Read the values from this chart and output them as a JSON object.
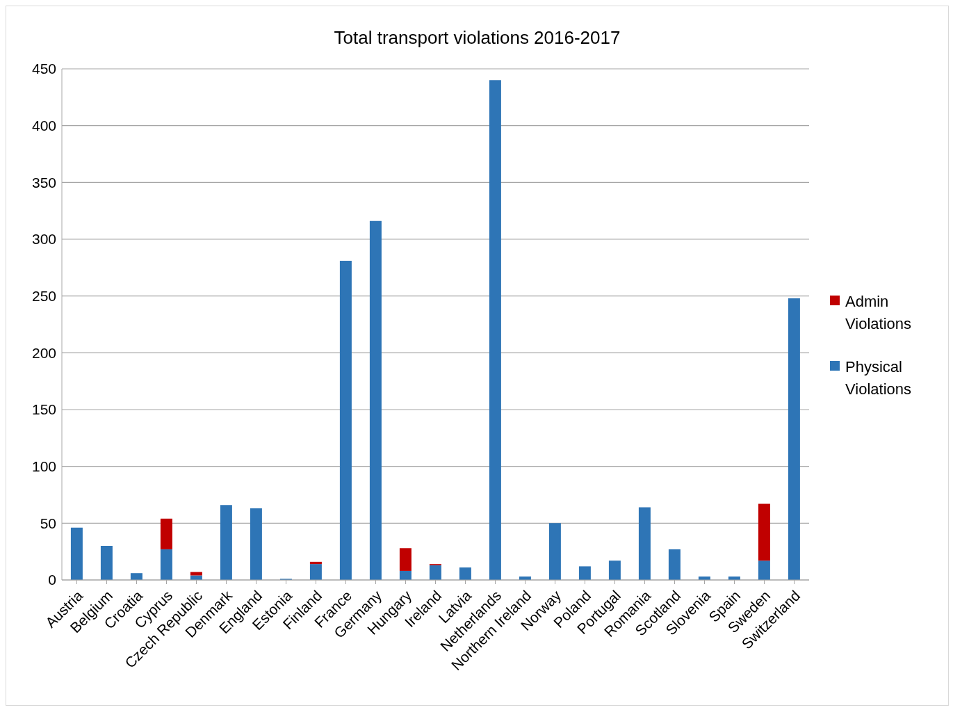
{
  "chart_data": {
    "type": "bar",
    "title": "Total transport violations 2016-2017",
    "stacked": true,
    "categories": [
      "Austria",
      "Belgium",
      "Croatia",
      "Cyprus",
      "Czech Republic",
      "Denmark",
      "England",
      "Estonia",
      "Finland",
      "France",
      "Germany",
      "Hungary",
      "Ireland",
      "Latvia",
      "Netherlands",
      "Northern Ireland",
      "Norway",
      "Poland",
      "Portugal",
      "Romania",
      "Scotland",
      "Slovenia",
      "Spain",
      "Sweden",
      "Switzerland"
    ],
    "series": [
      {
        "name": "Physical Violations",
        "color": "#2e75b6",
        "values": [
          46,
          30,
          6,
          27,
          4,
          66,
          63,
          1,
          14,
          281,
          316,
          8,
          13,
          11,
          440,
          3,
          50,
          12,
          17,
          64,
          27,
          3,
          3,
          17,
          248
        ]
      },
      {
        "name": "Admin Violations",
        "color": "#c00000",
        "values": [
          0,
          0,
          0,
          27,
          3,
          0,
          0,
          0,
          2,
          0,
          0,
          20,
          1,
          0,
          0,
          0,
          0,
          0,
          0,
          0,
          0,
          0,
          0,
          50,
          0
        ]
      }
    ],
    "ylim": [
      0,
      450
    ],
    "yticks": [
      0,
      50,
      100,
      150,
      200,
      250,
      300,
      350,
      400,
      450
    ],
    "grid": "y",
    "legend": "right"
  }
}
